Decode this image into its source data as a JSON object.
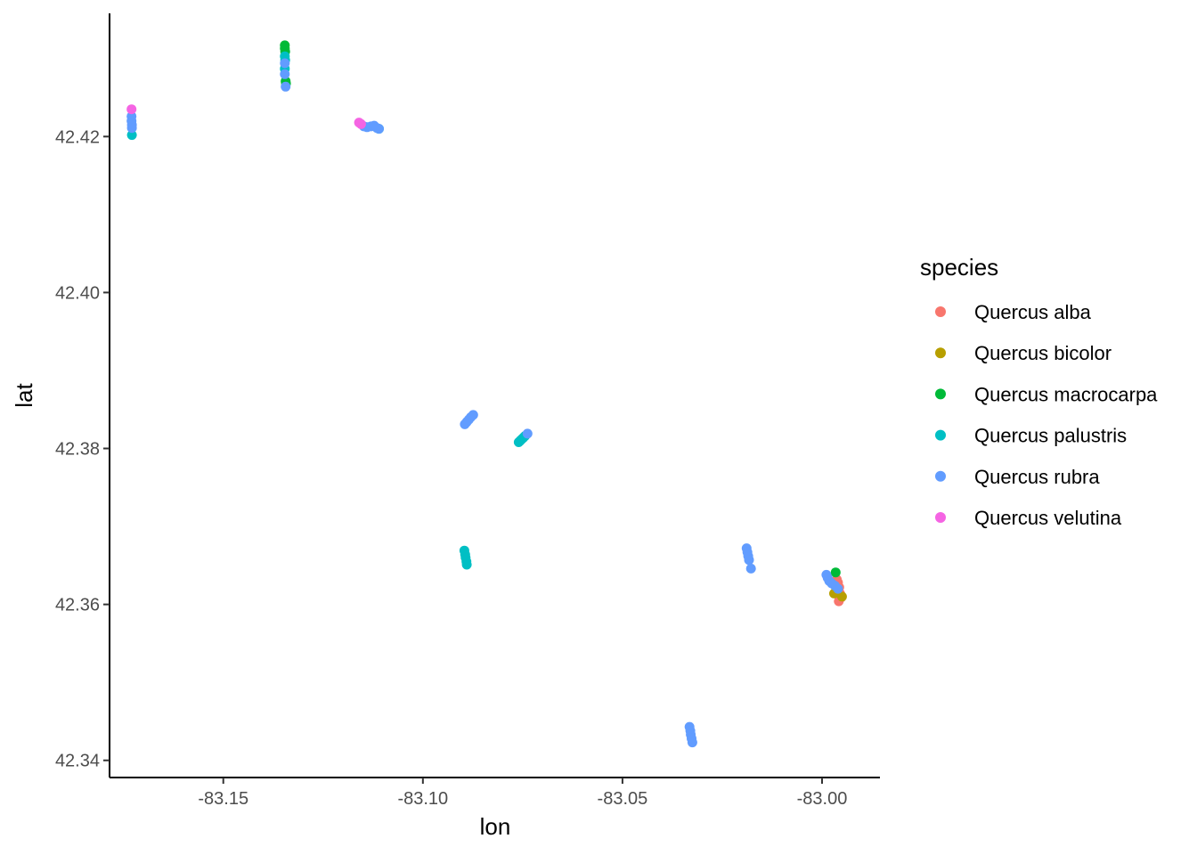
{
  "chart_data": {
    "type": "scatter",
    "xlabel": "lon",
    "ylabel": "lat",
    "xlim": [
      -83.1785,
      -82.9855
    ],
    "ylim": [
      42.3378,
      42.4358
    ],
    "x_ticks": [
      -83.15,
      -83.1,
      -83.05,
      -83.0
    ],
    "x_tick_labels": [
      "-83.15",
      "-83.10",
      "-83.05",
      "-83.00"
    ],
    "y_ticks": [
      42.34,
      42.36,
      42.38,
      42.4,
      42.42
    ],
    "y_tick_labels": [
      "42.34",
      "42.36",
      "42.38",
      "42.40",
      "42.42"
    ],
    "grid": false,
    "legend": {
      "title": "species",
      "position": "right"
    },
    "series": [
      {
        "name": "Quercus alba",
        "color": "#F8766D",
        "points": [
          [
            -82.9963,
            42.3632
          ],
          [
            -82.996,
            42.3628
          ],
          [
            -82.9957,
            42.3622
          ],
          [
            -82.9955,
            42.3614
          ],
          [
            -82.9952,
            42.3609
          ],
          [
            -82.9958,
            42.3604
          ]
        ]
      },
      {
        "name": "Quercus bicolor",
        "color": "#B79F00",
        "points": [
          [
            -82.997,
            42.3614
          ],
          [
            -82.995,
            42.361
          ]
        ]
      },
      {
        "name": "Quercus macrocarpa",
        "color": "#00BA38",
        "points": [
          [
            -83.1346,
            42.4317
          ],
          [
            -83.1346,
            42.4313
          ],
          [
            -83.1345,
            42.4309
          ],
          [
            -83.1344,
            42.4271
          ],
          [
            -83.1343,
            42.4268
          ],
          [
            -82.9966,
            42.3641
          ]
        ]
      },
      {
        "name": "Quercus palustris",
        "color": "#00BFC4",
        "points": [
          [
            -83.1346,
            42.4303
          ],
          [
            -83.1345,
            42.4298
          ],
          [
            -83.1346,
            42.4287
          ],
          [
            -83.1729,
            42.4202
          ],
          [
            -83.111,
            42.421
          ],
          [
            -83.0896,
            42.3669
          ],
          [
            -83.0894,
            42.3664
          ],
          [
            -83.0893,
            42.366
          ],
          [
            -83.0891,
            42.3655
          ],
          [
            -83.089,
            42.3651
          ],
          [
            -83.076,
            42.3808
          ],
          [
            -83.0756,
            42.381
          ],
          [
            -83.0752,
            42.3812
          ],
          [
            -83.0748,
            42.3814
          ],
          [
            -83.0744,
            42.3816
          ]
        ]
      },
      {
        "name": "Quercus rubra",
        "color": "#619CFF",
        "points": [
          [
            -83.1346,
            42.4294
          ],
          [
            -83.1344,
            42.4264
          ],
          [
            -83.1346,
            42.428
          ],
          [
            -83.173,
            42.4226
          ],
          [
            -83.173,
            42.422
          ],
          [
            -83.1729,
            42.4215
          ],
          [
            -83.1729,
            42.4211
          ],
          [
            -83.1148,
            42.4213
          ],
          [
            -83.114,
            42.4212
          ],
          [
            -83.113,
            42.4213
          ],
          [
            -83.1122,
            42.4214
          ],
          [
            -83.1115,
            42.4211
          ],
          [
            -83.111,
            42.421
          ],
          [
            -83.0895,
            42.3831
          ],
          [
            -83.089,
            42.3834
          ],
          [
            -83.0885,
            42.3837
          ],
          [
            -83.088,
            42.384
          ],
          [
            -83.0874,
            42.3843
          ],
          [
            -83.0738,
            42.3819
          ],
          [
            -83.0189,
            42.3672
          ],
          [
            -83.0187,
            42.3667
          ],
          [
            -83.0185,
            42.3662
          ],
          [
            -83.0183,
            42.3657
          ],
          [
            -83.0178,
            42.3646
          ],
          [
            -82.9989,
            42.3638
          ],
          [
            -82.9986,
            42.3634
          ],
          [
            -82.9982,
            42.363
          ],
          [
            -82.9976,
            42.3627
          ],
          [
            -82.9968,
            42.3624
          ],
          [
            -82.996,
            42.362
          ],
          [
            -83.0332,
            42.3443
          ],
          [
            -83.033,
            42.3438
          ],
          [
            -83.0329,
            42.3433
          ],
          [
            -83.0327,
            42.3428
          ],
          [
            -83.0325,
            42.3423
          ]
        ]
      },
      {
        "name": "Quercus velutina",
        "color": "#F564E3",
        "points": [
          [
            -83.173,
            42.4235
          ],
          [
            -83.116,
            42.4218
          ],
          [
            -83.1155,
            42.4216
          ]
        ]
      }
    ]
  }
}
